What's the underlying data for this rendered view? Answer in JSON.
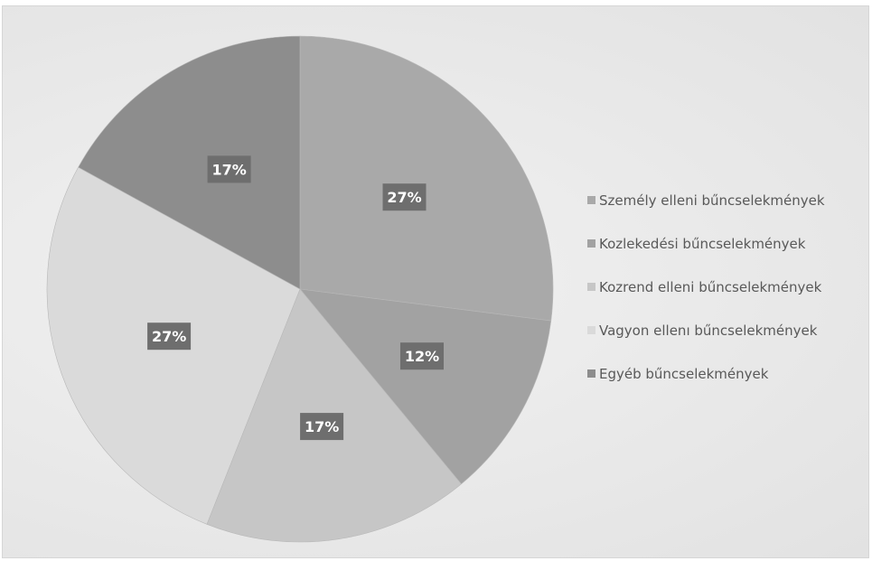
{
  "chart_data": {
    "type": "pie",
    "title": "",
    "categories": [
      "Személy elleni bűncselekmények",
      "Kozlekedési bűncselekmények",
      "Kozrend elleni bűncselekmények",
      "Vagyon ellenı bűncselekmények",
      "Egyéb bűncselekmények"
    ],
    "values": [
      27,
      12,
      17,
      27,
      17
    ],
    "data_labels": [
      "27%",
      "12%",
      "17%",
      "27%",
      "17%"
    ],
    "colors": [
      "#a9a9a9",
      "#a2a2a2",
      "#c6c6c6",
      "#dadada",
      "#8d8d8d"
    ],
    "label_box_color": "#6e6e6e",
    "label_text_color": "#ffffff",
    "legend_position": "right",
    "start_angle_deg": 0,
    "direction": "clockwise"
  }
}
